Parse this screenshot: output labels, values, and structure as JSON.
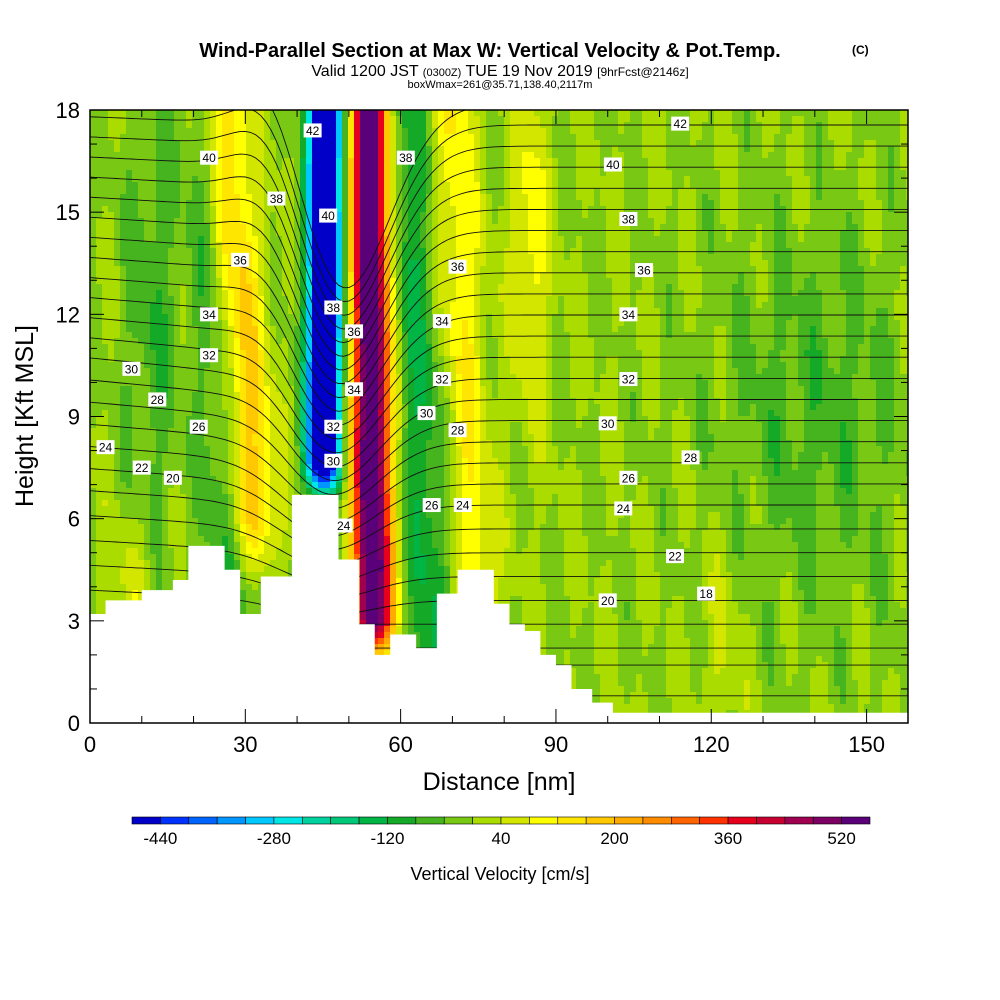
{
  "chart_data": {
    "type": "heatmap",
    "title": "Wind-Parallel Section at Max W: Vertical Velocity & Pot.Temp.",
    "title_mark": "(C)",
    "subtitle": {
      "valid": "Valid 1200 JST",
      "utc": "(0300Z)",
      "date": "TUE 19 Nov 2019",
      "forecast": "[9hrFcst@2146z]"
    },
    "box_info": "boxWmax=261@35.71,138.40,2117m",
    "xlabel": "Distance [nm]",
    "ylabel": "Height [Kft MSL]",
    "xlim": [
      0,
      158
    ],
    "ylim": [
      0,
      18
    ],
    "x_ticks": [
      "0",
      "30",
      "60",
      "90",
      "120",
      "150"
    ],
    "x_tick_values": [
      0,
      30,
      60,
      90,
      120,
      150
    ],
    "y_ticks": [
      "0",
      "3",
      "6",
      "9",
      "12",
      "15",
      "18"
    ],
    "y_tick_values": [
      0,
      3,
      6,
      9,
      12,
      15,
      18
    ],
    "grid": false,
    "colorbar": {
      "title": "Vertical Velocity [cm/s]",
      "labels": [
        "-440",
        "-280",
        "-120",
        "40",
        "200",
        "360",
        "520"
      ],
      "label_values": [
        -440,
        -280,
        -120,
        40,
        200,
        360,
        520
      ],
      "min": -480,
      "max": 560,
      "step": 40,
      "colors": [
        "#0000c8",
        "#0032ff",
        "#0064ff",
        "#0096ff",
        "#00c8ff",
        "#00e6e6",
        "#00d2a0",
        "#00c878",
        "#00b446",
        "#14aa28",
        "#46b41e",
        "#78c814",
        "#aadc00",
        "#d2e600",
        "#ffff00",
        "#ffe600",
        "#ffc800",
        "#ffaa00",
        "#ff8c00",
        "#ff6400",
        "#ff3200",
        "#e6001e",
        "#c80032",
        "#a00050",
        "#7d0064",
        "#5a0078"
      ]
    },
    "terrain": [
      [
        0,
        3.2
      ],
      [
        3,
        3.6
      ],
      [
        10,
        3.9
      ],
      [
        16,
        4.2
      ],
      [
        19,
        5.2
      ],
      [
        26,
        4.5
      ],
      [
        29,
        3.2
      ],
      [
        33,
        4.3
      ],
      [
        39,
        6.7
      ],
      [
        48,
        4.8
      ],
      [
        52,
        2.9
      ],
      [
        55,
        2.0
      ],
      [
        58,
        2.6
      ],
      [
        63,
        2.2
      ],
      [
        67,
        3.8
      ],
      [
        71,
        4.5
      ],
      [
        78,
        3.5
      ],
      [
        81,
        2.9
      ],
      [
        84,
        2.7
      ],
      [
        87,
        2.0
      ],
      [
        90,
        1.7
      ],
      [
        93,
        1.0
      ],
      [
        97,
        0.6
      ],
      [
        101,
        0.3
      ],
      [
        158,
        0.3
      ]
    ],
    "theta_contours": [
      {
        "label": "18",
        "label_at": [
          119,
          3.8
        ]
      },
      {
        "label": "20",
        "label_at": [
          16,
          7.2
        ],
        "label_at_2": [
          100,
          3.6
        ]
      },
      {
        "label": "22",
        "label_at": [
          10,
          7.5
        ],
        "label_at_2": [
          113,
          4.9
        ]
      },
      {
        "label": "24",
        "label_at": [
          3,
          8.1
        ],
        "label_at_2": [
          49,
          5.8
        ],
        "label_at_3": [
          72,
          6.4
        ],
        "label_at_4": [
          103,
          6.3
        ]
      },
      {
        "label": "26",
        "label_at": [
          21,
          8.7
        ],
        "label_at_2": [
          66,
          6.4
        ],
        "label_at_3": [
          104,
          7.2
        ]
      },
      {
        "label": "28",
        "label_at": [
          13,
          9.5
        ],
        "label_at_2": [
          71,
          8.6
        ],
        "label_at_3": [
          116,
          7.8
        ]
      },
      {
        "label": "30",
        "label_at": [
          8,
          10.4
        ],
        "label_at_2": [
          47,
          7.7
        ],
        "label_at_3": [
          65,
          9.1
        ],
        "label_at_4": [
          100,
          8.8
        ]
      },
      {
        "label": "32",
        "label_at": [
          23,
          10.8
        ],
        "label_at_2": [
          47,
          8.7
        ],
        "label_at_3": [
          68,
          10.1
        ],
        "label_at_4": [
          104,
          10.1
        ]
      },
      {
        "label": "34",
        "label_at": [
          23,
          12.0
        ],
        "label_at_2": [
          51,
          9.8
        ],
        "label_at_3": [
          68,
          11.8
        ],
        "label_at_4": [
          104,
          12.0
        ]
      },
      {
        "label": "36",
        "label_at": [
          29,
          13.6
        ],
        "label_at_2": [
          51,
          11.5
        ],
        "label_at_3": [
          71,
          13.4
        ],
        "label_at_4": [
          107,
          13.3
        ]
      },
      {
        "label": "38",
        "label_at": [
          36,
          15.4
        ],
        "label_at_2": [
          47,
          12.2
        ],
        "label_at_3": [
          61,
          16.6
        ],
        "label_at_4": [
          104,
          14.8
        ]
      },
      {
        "label": "40",
        "label_at": [
          23,
          16.6
        ],
        "label_at_2": [
          46,
          14.9
        ],
        "label_at_3": [
          101,
          16.4
        ]
      },
      {
        "label": "42",
        "label_at": [
          43,
          17.4
        ],
        "label_at_2": [
          114,
          17.6
        ]
      }
    ]
  }
}
